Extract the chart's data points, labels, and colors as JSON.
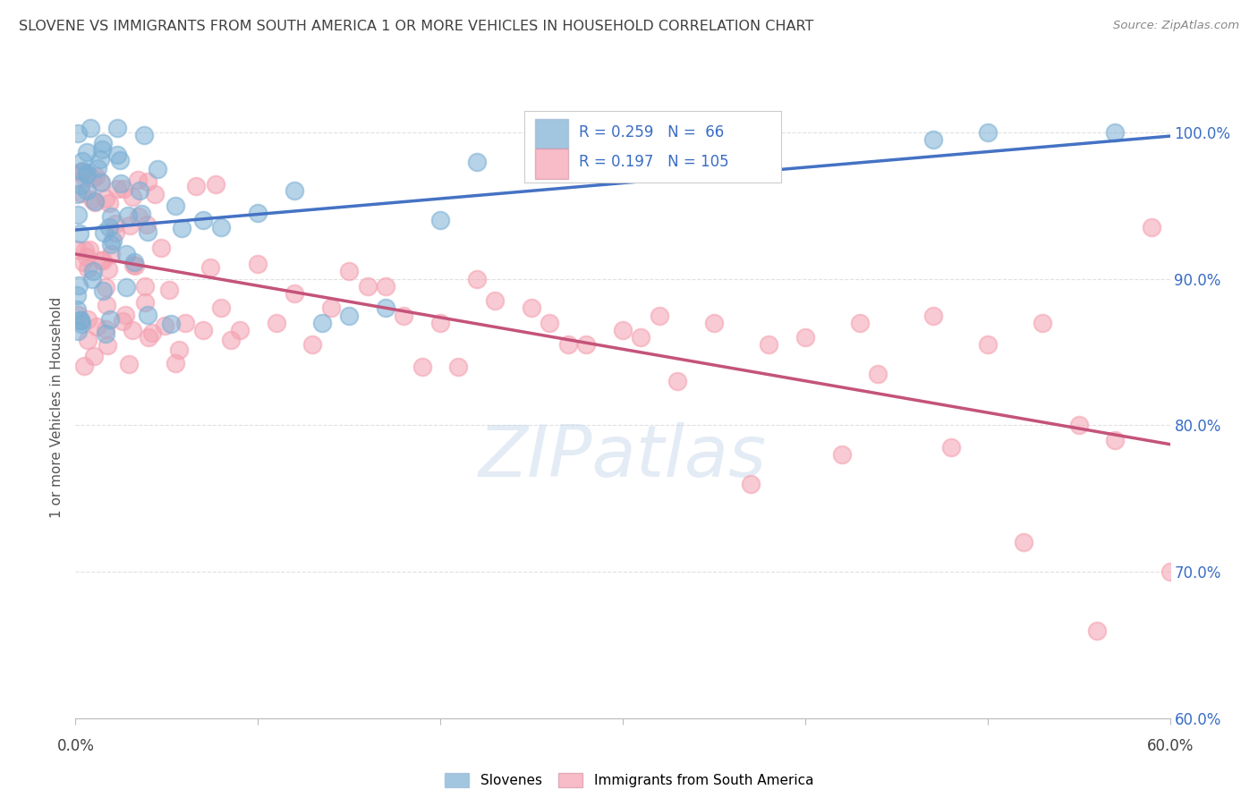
{
  "title": "SLOVENE VS IMMIGRANTS FROM SOUTH AMERICA 1 OR MORE VEHICLES IN HOUSEHOLD CORRELATION CHART",
  "source": "Source: ZipAtlas.com",
  "ylabel": "1 or more Vehicles in Household",
  "legend_slovenes": "Slovenes",
  "legend_immigrants": "Immigrants from South America",
  "R_slovene": 0.259,
  "N_slovene": 66,
  "R_immigrant": 0.197,
  "N_immigrant": 105,
  "blue_color": "#7BAFD4",
  "pink_color": "#F4A0B0",
  "trend_blue": "#4472C4",
  "trend_pink": "#C4537A",
  "text_color": "#3A6DC4",
  "title_color": "#404040",
  "source_color": "#888888",
  "watermark_color": "#C8D8EC",
  "x_min": 0.0,
  "x_max": 0.6,
  "y_min": 0.6,
  "y_max": 1.025,
  "right_yticks": [
    1.0,
    0.9,
    0.8,
    0.7,
    0.6
  ],
  "right_yticklabels": [
    "100.0%",
    "90.0%",
    "80.0%",
    "70.0%",
    "60.0%"
  ],
  "grid_color": "#DDDDDD",
  "bottom_spine_color": "#BBBBBB"
}
